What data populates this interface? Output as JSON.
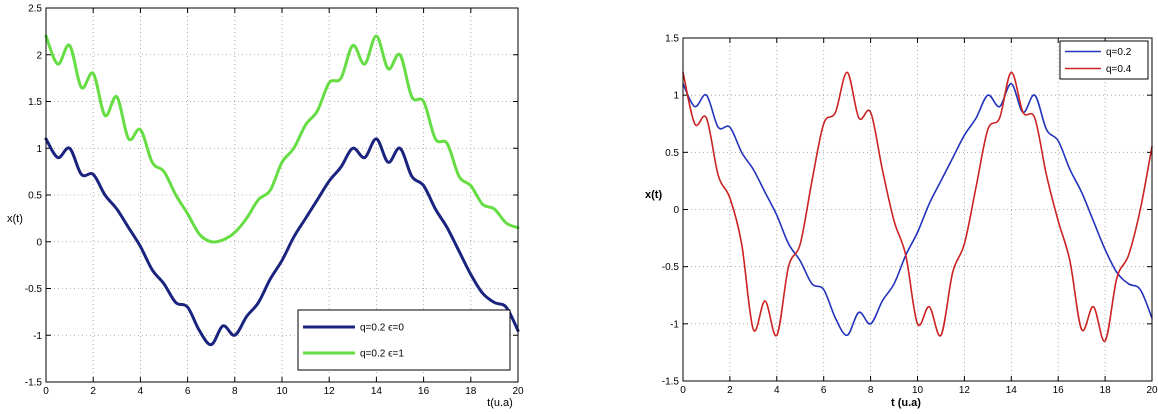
{
  "chart_data": [
    {
      "type": "line",
      "title": "",
      "xlabel": "t(u.a)",
      "ylabel": "x(t)",
      "xlim": [
        0,
        20
      ],
      "ylim": [
        -1.5,
        2.5
      ],
      "xticks": [
        "0",
        "2",
        "4",
        "6",
        "8",
        "10",
        "12",
        "14",
        "16",
        "18",
        "20"
      ],
      "yticks": [
        "-1.5",
        "-1",
        "-0.5",
        "0",
        "0.5",
        "1",
        "1.5",
        "2",
        "2.5"
      ],
      "grid": true,
      "legend_position": "bottom-right",
      "series": [
        {
          "name": "q=0.2 ϵ=0",
          "color": "#1a237e",
          "x": [
            0,
            0.5,
            1,
            1.5,
            2,
            2.5,
            3,
            3.5,
            4,
            4.5,
            5,
            5.5,
            6,
            6.5,
            7,
            7.5,
            8,
            8.5,
            9,
            9.5,
            10,
            10.5,
            11,
            11.5,
            12,
            12.5,
            13,
            13.5,
            14,
            14.5,
            15,
            15.5,
            16,
            16.5,
            17,
            17.5,
            18,
            18.5,
            19,
            19.5,
            20
          ],
          "values": [
            1.1,
            0.9,
            1.0,
            0.72,
            0.72,
            0.5,
            0.35,
            0.15,
            -0.05,
            -0.3,
            -0.45,
            -0.65,
            -0.7,
            -0.95,
            -1.1,
            -0.9,
            -1.0,
            -0.8,
            -0.65,
            -0.4,
            -0.2,
            0.05,
            0.25,
            0.45,
            0.65,
            0.8,
            1.0,
            0.9,
            1.1,
            0.85,
            1.0,
            0.7,
            0.6,
            0.35,
            0.15,
            -0.1,
            -0.35,
            -0.55,
            -0.65,
            -0.7,
            -0.95
          ]
        },
        {
          "name": "q=0.2 ϵ=1",
          "color": "#66dd44",
          "x": [
            0,
            0.5,
            1,
            1.5,
            2,
            2.5,
            3,
            3.5,
            4,
            4.5,
            5,
            5.5,
            6,
            6.5,
            7,
            7.5,
            8,
            8.5,
            9,
            9.5,
            10,
            10.5,
            11,
            11.5,
            12,
            12.5,
            13,
            13.5,
            14,
            14.5,
            15,
            15.5,
            16,
            16.5,
            17,
            17.5,
            18,
            18.5,
            19,
            19.5,
            20
          ],
          "values": [
            2.2,
            1.9,
            2.1,
            1.65,
            1.8,
            1.35,
            1.55,
            1.1,
            1.2,
            0.85,
            0.75,
            0.5,
            0.3,
            0.08,
            0.0,
            0.02,
            0.1,
            0.25,
            0.45,
            0.55,
            0.85,
            1.0,
            1.25,
            1.4,
            1.7,
            1.75,
            2.1,
            1.9,
            2.2,
            1.85,
            2.0,
            1.55,
            1.5,
            1.1,
            1.05,
            0.7,
            0.6,
            0.4,
            0.35,
            0.2,
            0.15
          ]
        }
      ]
    },
    {
      "type": "line",
      "title": "",
      "xlabel": "t (u.a)",
      "ylabel": "x(t)",
      "xlim": [
        0,
        20
      ],
      "ylim": [
        -1.5,
        1.5
      ],
      "xticks": [
        "0",
        "2",
        "4",
        "6",
        "8",
        "10",
        "12",
        "14",
        "16",
        "18",
        "20"
      ],
      "yticks": [
        "-1.5",
        "-1",
        "-0.5",
        "0",
        "0.5",
        "1",
        "1.5"
      ],
      "grid": true,
      "legend_position": "top-right",
      "series": [
        {
          "name": "q=0.2",
          "color": "#2233bb",
          "x": [
            0,
            0.5,
            1,
            1.5,
            2,
            2.5,
            3,
            3.5,
            4,
            4.5,
            5,
            5.5,
            6,
            6.5,
            7,
            7.5,
            8,
            8.5,
            9,
            9.5,
            10,
            10.5,
            11,
            11.5,
            12,
            12.5,
            13,
            13.5,
            14,
            14.5,
            15,
            15.5,
            16,
            16.5,
            17,
            17.5,
            18,
            18.5,
            19,
            19.5,
            20
          ],
          "values": [
            1.1,
            0.9,
            1.0,
            0.72,
            0.72,
            0.5,
            0.35,
            0.15,
            -0.05,
            -0.3,
            -0.45,
            -0.65,
            -0.7,
            -0.95,
            -1.1,
            -0.9,
            -1.0,
            -0.8,
            -0.65,
            -0.4,
            -0.2,
            0.05,
            0.25,
            0.45,
            0.65,
            0.8,
            1.0,
            0.9,
            1.1,
            0.85,
            1.0,
            0.7,
            0.6,
            0.35,
            0.15,
            -0.1,
            -0.35,
            -0.55,
            -0.65,
            -0.7,
            -0.95
          ]
        },
        {
          "name": "q=0.4",
          "color": "#cc2222",
          "x": [
            0,
            0.5,
            1,
            1.5,
            2,
            2.5,
            3,
            3.5,
            4,
            4.5,
            5,
            5.5,
            6,
            6.5,
            7,
            7.5,
            8,
            8.5,
            9,
            9.5,
            10,
            10.5,
            11,
            11.5,
            12,
            12.5,
            13,
            13.5,
            14,
            14.5,
            15,
            15.5,
            16,
            16.5,
            17,
            17.5,
            18,
            18.5,
            19,
            19.5,
            20
          ],
          "values": [
            1.2,
            0.75,
            0.8,
            0.3,
            0.1,
            -0.3,
            -1.05,
            -0.8,
            -1.1,
            -0.5,
            -0.3,
            0.25,
            0.75,
            0.85,
            1.2,
            0.8,
            0.85,
            0.35,
            -0.1,
            -0.4,
            -1.0,
            -0.85,
            -1.1,
            -0.55,
            -0.3,
            0.2,
            0.7,
            0.8,
            1.2,
            0.85,
            0.8,
            0.3,
            -0.1,
            -0.45,
            -1.05,
            -0.85,
            -1.15,
            -0.6,
            -0.4,
            0.0,
            0.55
          ]
        }
      ]
    }
  ]
}
